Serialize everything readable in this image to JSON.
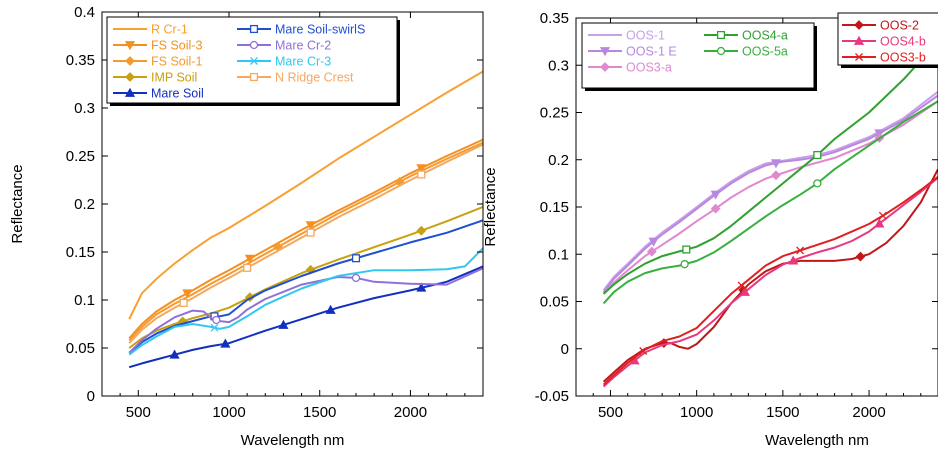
{
  "chart_data": [
    {
      "type": "line",
      "xlabel": "Wavelength nm",
      "ylabel": "Reflectance",
      "xlim": [
        300,
        2400
      ],
      "ylim": [
        0,
        0.4
      ],
      "xticks": [
        "500",
        "1000",
        "1500",
        "2000"
      ],
      "yticks": [
        "0",
        "0.05",
        "0.1",
        "0.15",
        "0.2",
        "0.25",
        "0.3",
        "0.35",
        "0.4"
      ],
      "legend_position": "top-left",
      "grid": false,
      "series": [
        {
          "name": "R Cr-1",
          "color": "#f8a030",
          "marker": "none",
          "x": [
            450,
            520,
            600,
            700,
            800,
            900,
            1000,
            1200,
            1400,
            1600,
            1800,
            2000,
            2200,
            2400
          ],
          "y": [
            0.08,
            0.107,
            0.122,
            0.138,
            0.152,
            0.165,
            0.175,
            0.198,
            0.222,
            0.247,
            0.27,
            0.293,
            0.316,
            0.338
          ]
        },
        {
          "name": "FS Soil-3",
          "color": "#f49020",
          "marker": "triangle-down",
          "x": [
            450,
            520,
            600,
            700,
            800,
            900,
            1000,
            1200,
            1400,
            1600,
            1800,
            2000,
            2200,
            2400
          ],
          "y": [
            0.06,
            0.075,
            0.088,
            0.1,
            0.11,
            0.121,
            0.131,
            0.152,
            0.173,
            0.193,
            0.212,
            0.232,
            0.25,
            0.267
          ],
          "marker_x": [
            770,
            1115,
            1450,
            2060
          ]
        },
        {
          "name": "FS Soil-1",
          "color": "#f39b30",
          "marker": "diamond",
          "x": [
            450,
            520,
            600,
            700,
            800,
            900,
            1000,
            1200,
            1400,
            1600,
            1800,
            2000,
            2200,
            2400
          ],
          "y": [
            0.058,
            0.072,
            0.085,
            0.096,
            0.106,
            0.117,
            0.127,
            0.148,
            0.169,
            0.19,
            0.209,
            0.229,
            0.247,
            0.264
          ],
          "marker_x": [
            1270,
            1940
          ]
        },
        {
          "name": "IMP Soil",
          "color": "#c8a010",
          "marker": "diamond",
          "x": [
            450,
            520,
            600,
            700,
            800,
            900,
            1000,
            1200,
            1400,
            1600,
            1800,
            2000,
            2200,
            2400
          ],
          "y": [
            0.05,
            0.06,
            0.068,
            0.075,
            0.081,
            0.086,
            0.092,
            0.111,
            0.128,
            0.142,
            0.155,
            0.168,
            0.182,
            0.197
          ],
          "marker_x": [
            745,
            1115,
            1450,
            2060
          ]
        },
        {
          "name": "Mare Soil",
          "color": "#1030c0",
          "marker": "triangle-up",
          "x": [
            450,
            520,
            600,
            700,
            800,
            900,
            1000,
            1200,
            1400,
            1600,
            1800,
            2000,
            2200,
            2400
          ],
          "y": [
            0.03,
            0.034,
            0.038,
            0.043,
            0.048,
            0.052,
            0.055,
            0.068,
            0.08,
            0.092,
            0.102,
            0.11,
            0.119,
            0.135
          ],
          "marker_x": [
            700,
            980,
            1300,
            1560,
            2060
          ]
        },
        {
          "name": "Mare Soil-swirlS",
          "color": "#2050d0",
          "marker": "square-open",
          "x": [
            450,
            520,
            600,
            700,
            800,
            900,
            950,
            1000,
            1100,
            1200,
            1400,
            1600,
            1800,
            2000,
            2200,
            2400
          ],
          "y": [
            0.045,
            0.056,
            0.065,
            0.073,
            0.078,
            0.083,
            0.083,
            0.085,
            0.1,
            0.11,
            0.125,
            0.138,
            0.149,
            0.16,
            0.17,
            0.183
          ],
          "marker_x": [
            920,
            1700
          ]
        },
        {
          "name": "Mare Cr-2",
          "color": "#9070d8",
          "marker": "circle-open",
          "x": [
            450,
            520,
            600,
            700,
            800,
            860,
            900,
            950,
            1000,
            1050,
            1100,
            1200,
            1400,
            1600,
            1700,
            1800,
            2000,
            2200,
            2400
          ],
          "y": [
            0.045,
            0.058,
            0.07,
            0.082,
            0.089,
            0.088,
            0.081,
            0.078,
            0.077,
            0.082,
            0.09,
            0.101,
            0.116,
            0.124,
            0.123,
            0.119,
            0.117,
            0.116,
            0.133
          ],
          "marker_x": [
            930,
            1700
          ]
        },
        {
          "name": "Mare Cr-3",
          "color": "#30c8f0",
          "marker": "x",
          "x": [
            450,
            520,
            600,
            700,
            800,
            900,
            950,
            1000,
            1100,
            1200,
            1400,
            1600,
            1800,
            2000,
            2200,
            2300,
            2400
          ],
          "y": [
            0.043,
            0.053,
            0.062,
            0.072,
            0.075,
            0.072,
            0.07,
            0.072,
            0.083,
            0.095,
            0.112,
            0.125,
            0.131,
            0.131,
            0.132,
            0.135,
            0.154
          ],
          "marker_x": [
            920
          ]
        },
        {
          "name": "N Ridge Crest",
          "color": "#f5a860",
          "marker": "square-open",
          "x": [
            450,
            520,
            600,
            700,
            800,
            900,
            1000,
            1200,
            1400,
            1600,
            1800,
            2000,
            2200,
            2400
          ],
          "y": [
            0.055,
            0.069,
            0.081,
            0.092,
            0.102,
            0.113,
            0.123,
            0.144,
            0.165,
            0.186,
            0.205,
            0.225,
            0.244,
            0.262
          ],
          "marker_x": [
            750,
            1100,
            1450,
            2060
          ]
        }
      ]
    },
    {
      "type": "line",
      "xlabel": "Wavelength nm",
      "ylabel": "Reflectance",
      "xlim": [
        300,
        2400
      ],
      "ylim": [
        -0.05,
        0.35
      ],
      "xticks": [
        "500",
        "1000",
        "1500",
        "2000"
      ],
      "yticks": [
        "-0.05",
        "0",
        "0.05",
        "0.1",
        "0.15",
        "0.2",
        "0.25",
        "0.3",
        "0.35"
      ],
      "legend_position": "top-left and top-right",
      "grid": false,
      "series": [
        {
          "name": "OOS-1",
          "color": "#c8a0e8",
          "marker": "none",
          "x": [
            460,
            520,
            600,
            700,
            800,
            900,
            1000,
            1100,
            1200,
            1300,
            1400,
            1500,
            1600,
            1700,
            1800,
            2000,
            2200,
            2400
          ],
          "y": [
            0.062,
            0.076,
            0.09,
            0.108,
            0.123,
            0.136,
            0.15,
            0.164,
            0.177,
            0.188,
            0.196,
            0.199,
            0.202,
            0.205,
            0.21,
            0.224,
            0.244,
            0.272
          ]
        },
        {
          "name": "OOS-1 E",
          "color": "#b888e0",
          "marker": "triangle-down",
          "x": [
            460,
            520,
            600,
            700,
            800,
            900,
            1000,
            1100,
            1200,
            1300,
            1400,
            1500,
            1600,
            1700,
            1800,
            2000,
            2200,
            2400
          ],
          "y": [
            0.06,
            0.074,
            0.088,
            0.106,
            0.121,
            0.134,
            0.148,
            0.162,
            0.175,
            0.186,
            0.194,
            0.198,
            0.2,
            0.203,
            0.208,
            0.222,
            0.242,
            0.268
          ],
          "marker_x": [
            750,
            1110,
            1460,
            2060
          ]
        },
        {
          "name": "OOS3-a",
          "color": "#e088d0",
          "marker": "diamond",
          "x": [
            460,
            520,
            600,
            700,
            800,
            900,
            1000,
            1100,
            1200,
            1300,
            1400,
            1500,
            1600,
            1700,
            1800,
            2000,
            2200,
            2400
          ],
          "y": [
            0.058,
            0.07,
            0.083,
            0.098,
            0.11,
            0.122,
            0.135,
            0.147,
            0.16,
            0.171,
            0.18,
            0.186,
            0.192,
            0.197,
            0.202,
            0.217,
            0.237,
            0.262
          ],
          "marker_x": [
            740,
            1110,
            1460,
            2060
          ]
        },
        {
          "name": "OOS4-a",
          "color": "#30a030",
          "marker": "square-open",
          "x": [
            460,
            520,
            600,
            700,
            800,
            900,
            1000,
            1100,
            1200,
            1300,
            1400,
            1500,
            1600,
            1700,
            1800,
            2000,
            2200,
            2300,
            2350
          ],
          "y": [
            0.058,
            0.068,
            0.079,
            0.09,
            0.098,
            0.103,
            0.108,
            0.117,
            0.13,
            0.145,
            0.16,
            0.175,
            0.19,
            0.205,
            0.222,
            0.25,
            0.285,
            0.305,
            0.318
          ],
          "marker_x": [
            940,
            1700
          ]
        },
        {
          "name": "OOS-5a",
          "color": "#38b040",
          "marker": "circle-open",
          "x": [
            460,
            520,
            600,
            700,
            800,
            900,
            1000,
            1100,
            1200,
            1300,
            1400,
            1500,
            1600,
            1700,
            1800,
            2000,
            2200,
            2400
          ],
          "y": [
            0.048,
            0.06,
            0.071,
            0.08,
            0.085,
            0.088,
            0.093,
            0.102,
            0.114,
            0.127,
            0.14,
            0.152,
            0.163,
            0.175,
            0.19,
            0.215,
            0.24,
            0.262
          ],
          "marker_x": [
            930,
            1700
          ]
        },
        {
          "name": "OOS-2",
          "color": "#c01818",
          "marker": "diamond",
          "x": [
            460,
            520,
            600,
            700,
            800,
            850,
            900,
            950,
            1000,
            1100,
            1200,
            1300,
            1400,
            1500,
            1600,
            1700,
            1800,
            1900,
            2000,
            2100,
            2200,
            2300,
            2400
          ],
          "y": [
            -0.035,
            -0.025,
            -0.012,
            0.0,
            0.006,
            0.006,
            0.002,
            0.0,
            0.005,
            0.023,
            0.048,
            0.068,
            0.082,
            0.09,
            0.093,
            0.093,
            0.093,
            0.095,
            0.1,
            0.112,
            0.13,
            0.155,
            0.19
          ],
          "marker_x": [
            810,
            1270,
            1950
          ]
        },
        {
          "name": "OOS4-b",
          "color": "#e83880",
          "marker": "triangle-up",
          "x": [
            460,
            520,
            600,
            700,
            800,
            900,
            1000,
            1100,
            1200,
            1300,
            1400,
            1500,
            1600,
            1700,
            1800,
            1900,
            2000,
            2100,
            2200,
            2300,
            2400
          ],
          "y": [
            -0.04,
            -0.03,
            -0.018,
            -0.004,
            0.004,
            0.008,
            0.015,
            0.03,
            0.048,
            0.063,
            0.078,
            0.089,
            0.096,
            0.102,
            0.107,
            0.114,
            0.124,
            0.138,
            0.152,
            0.166,
            0.181
          ],
          "marker_x": [
            640,
            1280,
            1560,
            2060
          ]
        },
        {
          "name": "OOS3-b",
          "color": "#e02020",
          "marker": "x",
          "x": [
            460,
            520,
            600,
            700,
            800,
            900,
            1000,
            1100,
            1200,
            1300,
            1400,
            1500,
            1600,
            1700,
            1800,
            1900,
            2000,
            2100,
            2200,
            2300,
            2400
          ],
          "y": [
            -0.038,
            -0.028,
            -0.015,
            -0.001,
            0.008,
            0.013,
            0.022,
            0.04,
            0.058,
            0.073,
            0.088,
            0.098,
            0.104,
            0.11,
            0.116,
            0.124,
            0.132,
            0.143,
            0.155,
            0.168,
            0.182
          ],
          "marker_x": [
            690,
            1260,
            1600,
            2080
          ]
        }
      ]
    }
  ],
  "legends": {
    "left": [
      {
        "label": "R Cr-1",
        "color": "#f8a030",
        "marker": "none",
        "col": 0,
        "row": 0
      },
      {
        "label": "FS Soil-3",
        "color": "#f49020",
        "marker": "triangle-down",
        "col": 0,
        "row": 1
      },
      {
        "label": "FS Soil-1",
        "color": "#f39b30",
        "marker": "diamond",
        "col": 0,
        "row": 2
      },
      {
        "label": "IMP Soil",
        "color": "#c8a010",
        "marker": "diamond",
        "col": 0,
        "row": 3
      },
      {
        "label": "Mare Soil",
        "color": "#1030c0",
        "marker": "triangle-up",
        "col": 0,
        "row": 4
      },
      {
        "label": "Mare Soil-swirlS",
        "color": "#2050d0",
        "marker": "square-open",
        "col": 1,
        "row": 0
      },
      {
        "label": "Mare Cr-2",
        "color": "#9070d8",
        "marker": "circle-open",
        "col": 1,
        "row": 1
      },
      {
        "label": "Mare Cr-3",
        "color": "#30c8f0",
        "marker": "x",
        "col": 1,
        "row": 2
      },
      {
        "label": "N Ridge Crest",
        "color": "#f5a860",
        "marker": "square-open",
        "col": 1,
        "row": 3
      }
    ],
    "right_a": [
      {
        "label": "OOS-1",
        "color": "#c8a0e8",
        "marker": "none",
        "col": 0,
        "row": 0
      },
      {
        "label": "OOS-1 E",
        "color": "#b888e0",
        "marker": "triangle-down",
        "col": 0,
        "row": 1
      },
      {
        "label": "OOS3-a",
        "color": "#e088d0",
        "marker": "diamond",
        "col": 0,
        "row": 2
      },
      {
        "label": "OOS4-a",
        "color": "#30a030",
        "marker": "square-open",
        "col": 1,
        "row": 0
      },
      {
        "label": "OOS-5a",
        "color": "#38b040",
        "marker": "circle-open",
        "col": 1,
        "row": 1
      }
    ],
    "right_b": [
      {
        "label": "OOS-2",
        "color": "#c01818",
        "marker": "diamond",
        "col": 0,
        "row": 0
      },
      {
        "label": "OOS4-b",
        "color": "#e83880",
        "marker": "triangle-up",
        "col": 0,
        "row": 1
      },
      {
        "label": "OOS3-b",
        "color": "#e02020",
        "marker": "x",
        "col": 0,
        "row": 2
      }
    ]
  }
}
